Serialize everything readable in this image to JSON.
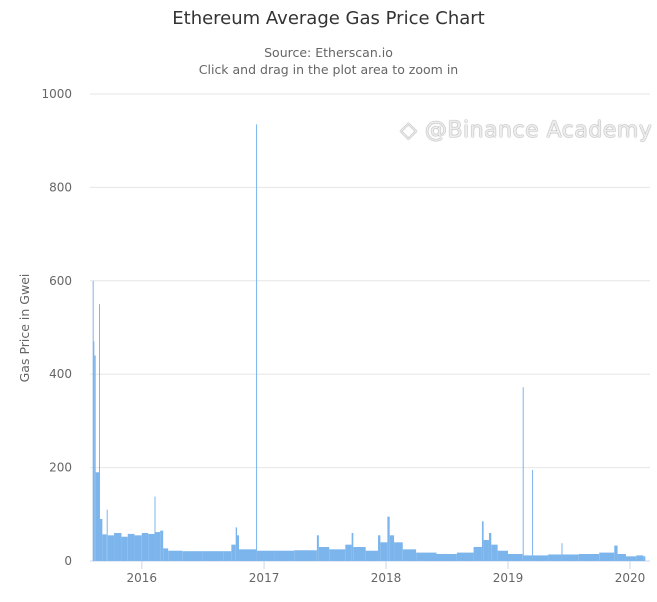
{
  "chart_data": {
    "type": "bar",
    "title": "Ethereum Average Gas Price Chart",
    "subtitle": "Source: Etherscan.io",
    "subtitle2": "Click and drag in the plot area to zoom in",
    "xlabel": "",
    "ylabel": "Gas Price in Gwei",
    "ylim": [
      0,
      1000
    ],
    "yticks": [
      0,
      200,
      400,
      600,
      800,
      1000
    ],
    "xticks": [
      "2016",
      "2017",
      "2018",
      "2019",
      "2020"
    ],
    "xlim": [
      "2015-07-30",
      "2020-02-15"
    ],
    "grid": true,
    "color": "#7cb5ec",
    "points": [
      [
        "2015-08-07",
        600
      ],
      [
        "2015-08-09",
        470
      ],
      [
        "2015-08-12",
        440
      ],
      [
        "2015-08-16",
        190
      ],
      [
        "2015-08-26",
        550
      ],
      [
        "2015-08-28",
        90
      ],
      [
        "2015-09-05",
        57
      ],
      [
        "2015-09-18",
        110
      ],
      [
        "2015-09-21",
        55
      ],
      [
        "2015-10-10",
        60
      ],
      [
        "2015-11-01",
        52
      ],
      [
        "2015-11-20",
        58
      ],
      [
        "2015-12-10",
        55
      ],
      [
        "2016-01-01",
        60
      ],
      [
        "2016-01-20",
        58
      ],
      [
        "2016-02-08",
        138
      ],
      [
        "2016-02-11",
        62
      ],
      [
        "2016-02-25",
        65
      ],
      [
        "2016-03-05",
        27
      ],
      [
        "2016-03-20",
        22
      ],
      [
        "2016-05-01",
        21
      ],
      [
        "2016-07-01",
        21
      ],
      [
        "2016-09-01",
        21
      ],
      [
        "2016-09-25",
        35
      ],
      [
        "2016-10-08",
        72
      ],
      [
        "2016-10-12",
        55
      ],
      [
        "2016-10-18",
        25
      ],
      [
        "2016-12-08",
        935
      ],
      [
        "2016-12-10",
        22
      ],
      [
        "2017-02-01",
        22
      ],
      [
        "2017-04-01",
        23
      ],
      [
        "2017-06-08",
        55
      ],
      [
        "2017-06-14",
        30
      ],
      [
        "2017-07-15",
        25
      ],
      [
        "2017-09-01",
        35
      ],
      [
        "2017-09-20",
        60
      ],
      [
        "2017-09-25",
        30
      ],
      [
        "2017-11-01",
        22
      ],
      [
        "2017-12-08",
        55
      ],
      [
        "2017-12-15",
        40
      ],
      [
        "2018-01-05",
        95
      ],
      [
        "2018-01-12",
        55
      ],
      [
        "2018-01-25",
        40
      ],
      [
        "2018-02-20",
        25
      ],
      [
        "2018-04-01",
        18
      ],
      [
        "2018-06-01",
        15
      ],
      [
        "2018-08-01",
        18
      ],
      [
        "2018-09-20",
        30
      ],
      [
        "2018-10-15",
        85
      ],
      [
        "2018-10-20",
        45
      ],
      [
        "2018-11-05",
        60
      ],
      [
        "2018-11-12",
        35
      ],
      [
        "2018-12-01",
        22
      ],
      [
        "2019-01-01",
        15
      ],
      [
        "2019-02-14",
        372
      ],
      [
        "2019-02-16",
        12
      ],
      [
        "2019-03-14",
        195
      ],
      [
        "2019-03-16",
        12
      ],
      [
        "2019-05-01",
        14
      ],
      [
        "2019-06-10",
        38
      ],
      [
        "2019-06-13",
        14
      ],
      [
        "2019-08-01",
        15
      ],
      [
        "2019-10-01",
        18
      ],
      [
        "2019-11-15",
        33
      ],
      [
        "2019-11-25",
        15
      ],
      [
        "2019-12-20",
        10
      ],
      [
        "2020-01-20",
        12
      ],
      [
        "2020-02-10",
        10
      ]
    ]
  },
  "watermark": "@Binance Academy"
}
